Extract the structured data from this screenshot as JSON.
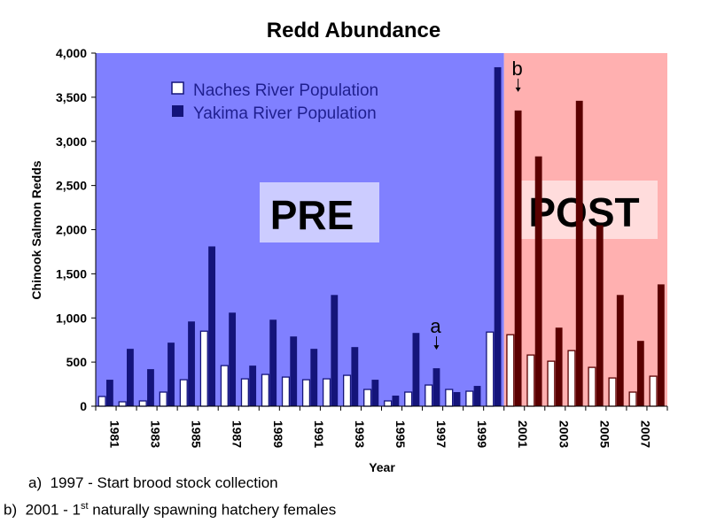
{
  "chart_data": {
    "type": "bar",
    "title": "Redd Abundance",
    "xlabel": "Year",
    "ylabel": "Chinook Salmon Redds",
    "ylim": [
      0,
      4000
    ],
    "yticks": [
      "0",
      "500",
      "1,000",
      "1,500",
      "2,000",
      "2,500",
      "3,000",
      "3,500",
      "4,000"
    ],
    "years": [
      1981,
      1982,
      1983,
      1984,
      1985,
      1986,
      1987,
      1988,
      1989,
      1990,
      1991,
      1992,
      1993,
      1994,
      1995,
      1996,
      1997,
      1998,
      1999,
      2000,
      2001,
      2002,
      2003,
      2004,
      2005,
      2006,
      2007,
      2008
    ],
    "xtick_labels": [
      "1981",
      "1983",
      "1985",
      "1987",
      "1989",
      "1991",
      "1993",
      "1995",
      "1997",
      "1999",
      "2001",
      "2003",
      "2005",
      "2007"
    ],
    "series": [
      {
        "name": "Naches River Population",
        "values": [
          110,
          50,
          60,
          160,
          300,
          850,
          460,
          310,
          360,
          330,
          300,
          310,
          350,
          190,
          60,
          160,
          240,
          190,
          170,
          840,
          810,
          580,
          510,
          630,
          440,
          320,
          160,
          340
        ]
      },
      {
        "name": "Yakima River Population",
        "values": [
          300,
          650,
          420,
          720,
          960,
          1810,
          1060,
          460,
          980,
          790,
          650,
          1260,
          670,
          300,
          120,
          830,
          430,
          160,
          230,
          3840,
          3350,
          2830,
          890,
          3460,
          2050,
          1260,
          740,
          1380
        ]
      }
    ],
    "periods": [
      {
        "label": "PRE",
        "from": 1981,
        "to": 2000,
        "color": "#8080ff"
      },
      {
        "label": "POST",
        "from": 2001,
        "to": 2008,
        "color": "#ffb0b0"
      }
    ],
    "annotations": [
      {
        "letter": "a",
        "year": 1997
      },
      {
        "letter": "b",
        "year": 2001
      }
    ],
    "colors": {
      "pre_bg": "#8080ff",
      "post_bg": "#ffb0b0",
      "pre_bar": "#14147a",
      "post_bar": "#5a0000",
      "pre_hollow_stroke": "#14147a",
      "post_hollow_stroke": "#5a0000",
      "label_box": "#ccccff",
      "post_label_box": "#ffdcdc"
    },
    "legend_position": "top-left"
  },
  "footnotes": {
    "a_marker": "a)",
    "a_text": "1997 - Start brood stock collection",
    "b_marker": "b)",
    "b_text_pre": "2001 - 1",
    "b_text_sup": "st",
    "b_text_post": " naturally spawning hatchery females"
  }
}
